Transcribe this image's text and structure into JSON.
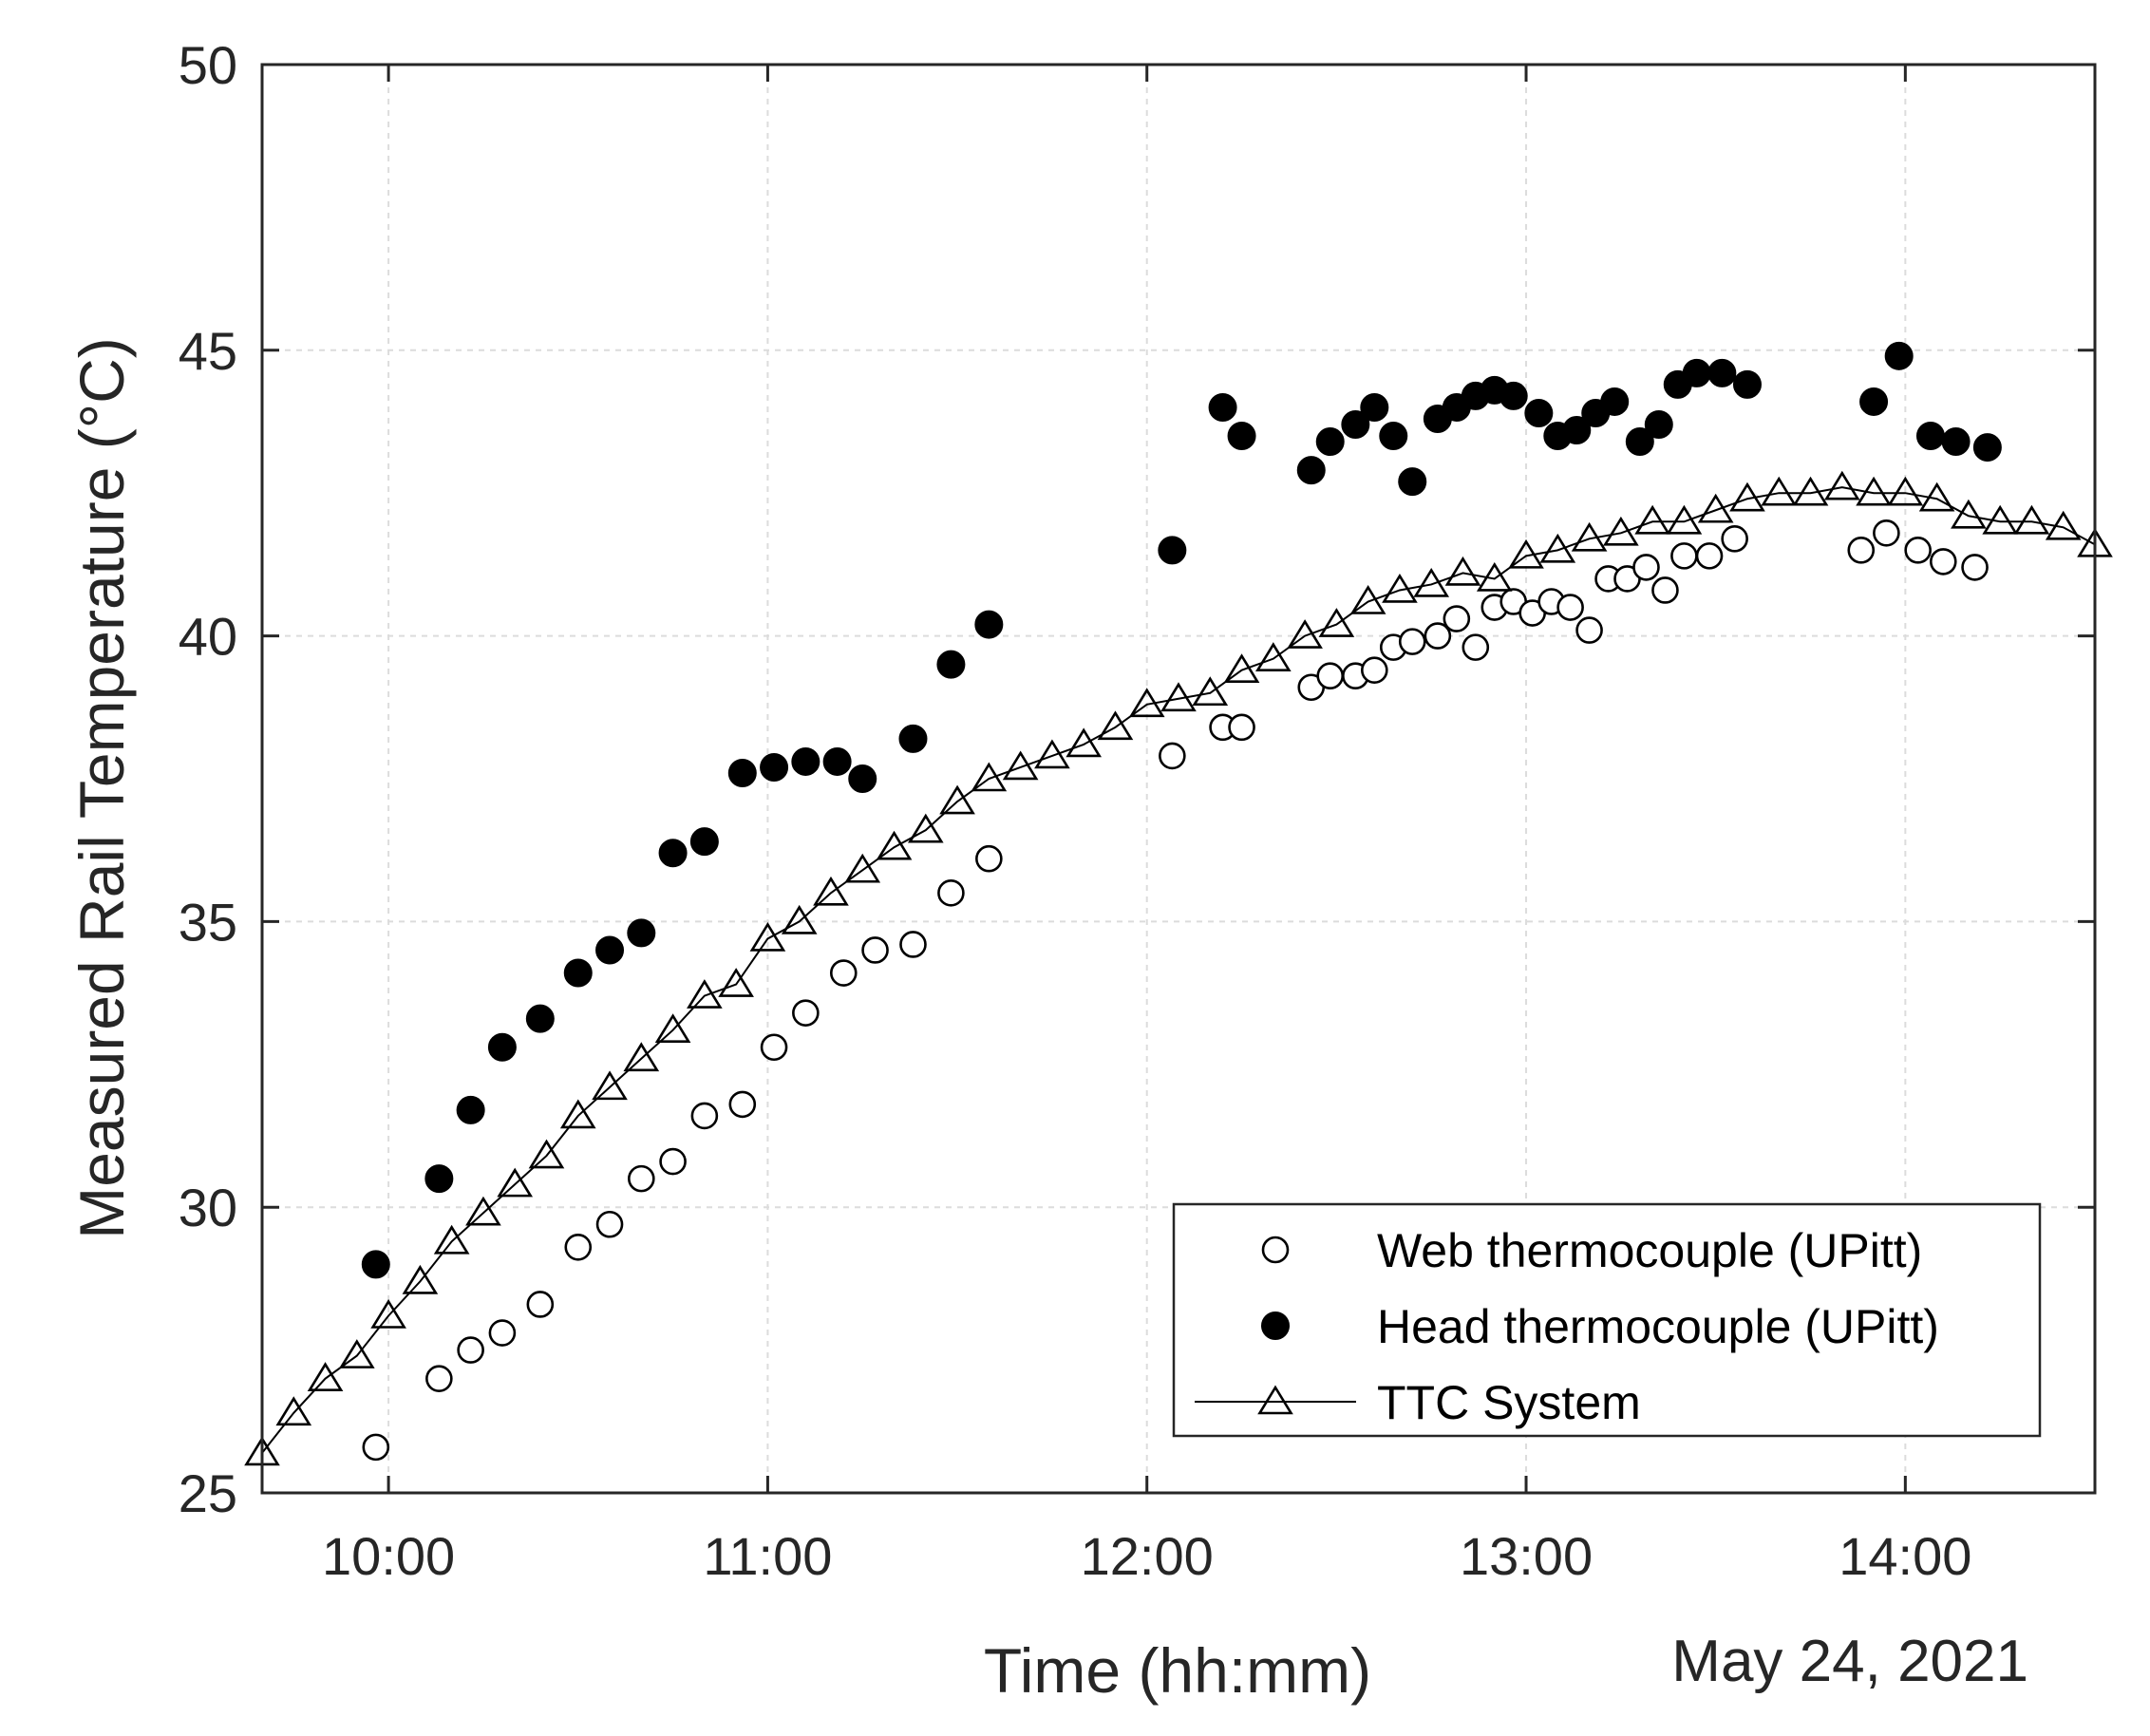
{
  "chart_data": {
    "type": "scatter",
    "title": "",
    "xlabel": "Time (hh:mm)",
    "ylabel": "Measured Rail Temperature (°C)",
    "date_label": "May 24, 2021",
    "xlim": [
      "09:40",
      "14:30"
    ],
    "ylim": [
      25,
      50
    ],
    "x_ticks": [
      "10:00",
      "11:00",
      "12:00",
      "13:00",
      "14:00"
    ],
    "y_ticks": [
      25,
      30,
      35,
      40,
      45,
      50
    ],
    "grid": true,
    "legend_position": "bottom-right",
    "series": [
      {
        "name": "Web thermocouple (UPitt)",
        "marker": "open-circle",
        "line": false,
        "points": [
          [
            "09:58",
            25.8
          ],
          [
            "10:08",
            27.0
          ],
          [
            "10:13",
            27.5
          ],
          [
            "10:18",
            27.8
          ],
          [
            "10:24",
            28.3
          ],
          [
            "10:30",
            29.3
          ],
          [
            "10:35",
            29.7
          ],
          [
            "10:40",
            30.5
          ],
          [
            "10:45",
            30.8
          ],
          [
            "10:50",
            31.6
          ],
          [
            "10:56",
            31.8
          ],
          [
            "11:01",
            32.8
          ],
          [
            "11:06",
            33.4
          ],
          [
            "11:12",
            34.1
          ],
          [
            "11:17",
            34.5
          ],
          [
            "11:23",
            34.6
          ],
          [
            "11:29",
            35.5
          ],
          [
            "11:35",
            36.1
          ],
          [
            "12:04",
            37.9
          ],
          [
            "12:12",
            38.4
          ],
          [
            "12:15",
            38.4
          ],
          [
            "12:26",
            39.1
          ],
          [
            "12:29",
            39.3
          ],
          [
            "12:33",
            39.3
          ],
          [
            "12:36",
            39.4
          ],
          [
            "12:39",
            39.8
          ],
          [
            "12:42",
            39.9
          ],
          [
            "12:46",
            40.0
          ],
          [
            "12:49",
            40.3
          ],
          [
            "12:52",
            39.8
          ],
          [
            "12:55",
            40.5
          ],
          [
            "12:58",
            40.6
          ],
          [
            "13:01",
            40.4
          ],
          [
            "13:04",
            40.6
          ],
          [
            "13:07",
            40.5
          ],
          [
            "13:10",
            40.1
          ],
          [
            "13:13",
            41.0
          ],
          [
            "13:16",
            41.0
          ],
          [
            "13:19",
            41.2
          ],
          [
            "13:22",
            40.8
          ],
          [
            "13:25",
            41.4
          ],
          [
            "13:29",
            41.4
          ],
          [
            "13:33",
            41.7
          ],
          [
            "13:53",
            41.5
          ],
          [
            "13:57",
            41.8
          ],
          [
            "14:02",
            41.5
          ],
          [
            "14:06",
            41.3
          ],
          [
            "14:11",
            41.2
          ]
        ]
      },
      {
        "name": "Head thermocouple (UPitt)",
        "marker": "filled-circle",
        "line": false,
        "points": [
          [
            "09:58",
            29.0
          ],
          [
            "10:08",
            30.5
          ],
          [
            "10:13",
            31.7
          ],
          [
            "10:18",
            32.8
          ],
          [
            "10:24",
            33.3
          ],
          [
            "10:30",
            34.1
          ],
          [
            "10:35",
            34.5
          ],
          [
            "10:40",
            34.8
          ],
          [
            "10:45",
            36.2
          ],
          [
            "10:50",
            36.4
          ],
          [
            "10:56",
            37.6
          ],
          [
            "11:01",
            37.7
          ],
          [
            "11:06",
            37.8
          ],
          [
            "11:11",
            37.8
          ],
          [
            "11:15",
            37.5
          ],
          [
            "11:23",
            38.2
          ],
          [
            "11:29",
            39.5
          ],
          [
            "11:35",
            40.2
          ],
          [
            "12:04",
            41.5
          ],
          [
            "12:12",
            44.0
          ],
          [
            "12:15",
            43.5
          ],
          [
            "12:26",
            42.9
          ],
          [
            "12:29",
            43.4
          ],
          [
            "12:33",
            43.7
          ],
          [
            "12:36",
            44.0
          ],
          [
            "12:39",
            43.5
          ],
          [
            "12:42",
            42.7
          ],
          [
            "12:46",
            43.8
          ],
          [
            "12:49",
            44.0
          ],
          [
            "12:52",
            44.2
          ],
          [
            "12:55",
            44.3
          ],
          [
            "12:58",
            44.2
          ],
          [
            "13:02",
            43.9
          ],
          [
            "13:05",
            43.5
          ],
          [
            "13:08",
            43.6
          ],
          [
            "13:11",
            43.9
          ],
          [
            "13:14",
            44.1
          ],
          [
            "13:18",
            43.4
          ],
          [
            "13:21",
            43.7
          ],
          [
            "13:24",
            44.4
          ],
          [
            "13:27",
            44.6
          ],
          [
            "13:31",
            44.6
          ],
          [
            "13:35",
            44.4
          ],
          [
            "13:55",
            44.1
          ],
          [
            "13:59",
            44.9
          ],
          [
            "14:04",
            43.5
          ],
          [
            "14:08",
            43.4
          ],
          [
            "14:13",
            43.3
          ]
        ]
      },
      {
        "name": "TTC System",
        "marker": "open-triangle",
        "line": true,
        "points": [
          [
            "09:40",
            25.7
          ],
          [
            "09:45",
            26.4
          ],
          [
            "09:50",
            27.0
          ],
          [
            "09:55",
            27.4
          ],
          [
            "10:00",
            28.1
          ],
          [
            "10:05",
            28.7
          ],
          [
            "10:10",
            29.4
          ],
          [
            "10:15",
            29.9
          ],
          [
            "10:20",
            30.4
          ],
          [
            "10:25",
            30.9
          ],
          [
            "10:30",
            31.6
          ],
          [
            "10:35",
            32.1
          ],
          [
            "10:40",
            32.6
          ],
          [
            "10:45",
            33.1
          ],
          [
            "10:50",
            33.7
          ],
          [
            "10:55",
            33.9
          ],
          [
            "11:00",
            34.7
          ],
          [
            "11:05",
            35.0
          ],
          [
            "11:10",
            35.5
          ],
          [
            "11:15",
            35.9
          ],
          [
            "11:20",
            36.3
          ],
          [
            "11:25",
            36.6
          ],
          [
            "11:30",
            37.1
          ],
          [
            "11:35",
            37.5
          ],
          [
            "11:40",
            37.7
          ],
          [
            "11:45",
            37.9
          ],
          [
            "11:50",
            38.1
          ],
          [
            "11:55",
            38.4
          ],
          [
            "12:00",
            38.8
          ],
          [
            "12:05",
            38.9
          ],
          [
            "12:10",
            39.0
          ],
          [
            "12:15",
            39.4
          ],
          [
            "12:20",
            39.6
          ],
          [
            "12:25",
            40.0
          ],
          [
            "12:30",
            40.2
          ],
          [
            "12:35",
            40.6
          ],
          [
            "12:40",
            40.8
          ],
          [
            "12:45",
            40.9
          ],
          [
            "12:50",
            41.1
          ],
          [
            "12:55",
            41.0
          ],
          [
            "13:00",
            41.4
          ],
          [
            "13:05",
            41.5
          ],
          [
            "13:10",
            41.7
          ],
          [
            "13:15",
            41.8
          ],
          [
            "13:20",
            42.0
          ],
          [
            "13:25",
            42.0
          ],
          [
            "13:30",
            42.2
          ],
          [
            "13:35",
            42.4
          ],
          [
            "13:40",
            42.5
          ],
          [
            "13:45",
            42.5
          ],
          [
            "13:50",
            42.6
          ],
          [
            "13:55",
            42.5
          ],
          [
            "14:00",
            42.5
          ],
          [
            "14:05",
            42.4
          ],
          [
            "14:10",
            42.1
          ],
          [
            "14:15",
            42.0
          ],
          [
            "14:20",
            42.0
          ],
          [
            "14:25",
            41.9
          ],
          [
            "14:30",
            41.6
          ]
        ]
      }
    ]
  }
}
